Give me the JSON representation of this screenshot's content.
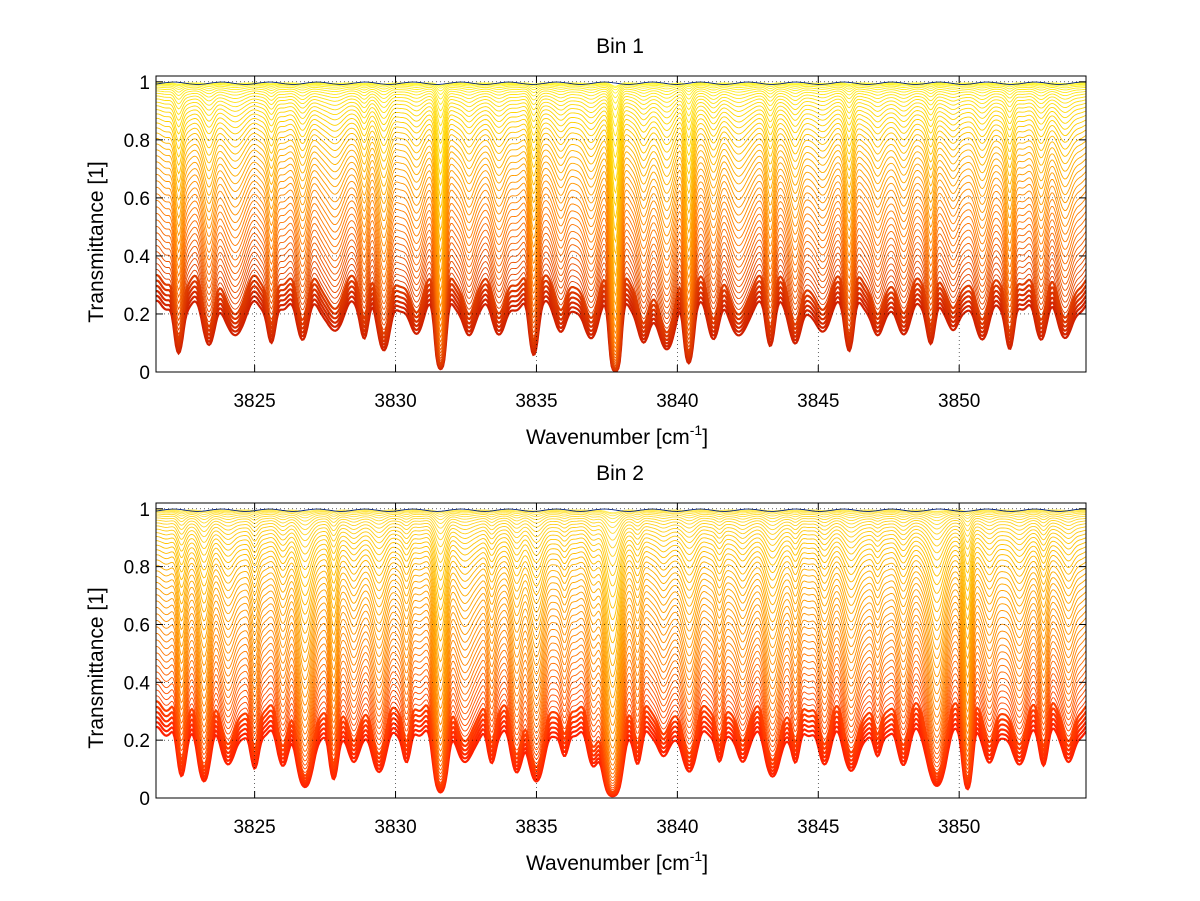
{
  "chart_data": [
    {
      "type": "line",
      "title": "Bin 1",
      "xlabel": "Wavenumber [cm",
      "xlabel_sup": "-1",
      "xlabel_close": "]",
      "ylabel": "Transmittance [1]",
      "xlim": [
        3821.5,
        3854.5
      ],
      "ylim": [
        0,
        1.02
      ],
      "x_ticks": [
        3825,
        3830,
        3835,
        3840,
        3845,
        3850
      ],
      "x_tick_labels": [
        "3825",
        "3830",
        "3835",
        "3840",
        "3845",
        "3850"
      ],
      "y_ticks": [
        0,
        0.2,
        0.4,
        0.6,
        0.8,
        1
      ],
      "y_tick_labels": [
        "0",
        "0.2",
        "0.4",
        "0.6",
        "0.8",
        "1"
      ],
      "grid": "dotted",
      "n_curves": 48,
      "line_centers": [
        3822.3,
        3823.4,
        3824.3,
        3825.6,
        3826.7,
        3827.8,
        3828.9,
        3829.6,
        3830.7,
        3831.6,
        3832.6,
        3833.7,
        3834.9,
        3835.9,
        3836.9,
        3837.8,
        3838.8,
        3839.6,
        3840.4,
        3841.3,
        3842.2,
        3843.3,
        3844.2,
        3845.1,
        3846.1,
        3847.1,
        3848.0,
        3849.0,
        3849.8,
        3850.8,
        3851.8,
        3852.9,
        3853.8
      ],
      "line_depths": [
        0.3,
        0.2,
        0.15,
        0.2,
        0.15,
        0.12,
        0.15,
        0.25,
        0.12,
        0.7,
        0.15,
        0.12,
        0.3,
        0.12,
        0.15,
        0.97,
        0.2,
        0.25,
        0.45,
        0.15,
        0.15,
        0.2,
        0.2,
        0.12,
        0.25,
        0.15,
        0.12,
        0.2,
        0.12,
        0.15,
        0.25,
        0.15,
        0.15
      ],
      "color_scheme": [
        "#d02000",
        "#ff7800",
        "#ffd000",
        "#ffff40"
      ],
      "top_curve_color": "#00207f"
    },
    {
      "type": "line",
      "title": "Bin 2",
      "xlabel": "Wavenumber [cm",
      "xlabel_sup": "-1",
      "xlabel_close": "]",
      "ylabel": "Transmittance [1]",
      "xlim": [
        3821.5,
        3854.5
      ],
      "ylim": [
        0,
        1.02
      ],
      "x_ticks": [
        3825,
        3830,
        3835,
        3840,
        3845,
        3850
      ],
      "x_tick_labels": [
        "3825",
        "3830",
        "3835",
        "3840",
        "3845",
        "3850"
      ],
      "y_ticks": [
        0,
        0.2,
        0.4,
        0.6,
        0.8,
        1
      ],
      "y_tick_labels": [
        "0",
        "0.2",
        "0.4",
        "0.6",
        "0.8",
        "1"
      ],
      "grid": "dotted",
      "n_curves": 48,
      "line_centers": [
        3822.4,
        3823.2,
        3824.1,
        3825.0,
        3826.0,
        3826.8,
        3827.8,
        3828.5,
        3829.4,
        3830.4,
        3831.6,
        3832.5,
        3833.4,
        3834.3,
        3835.0,
        3836.0,
        3837.0,
        3837.7,
        3838.6,
        3839.5,
        3840.4,
        3841.5,
        3842.3,
        3843.4,
        3844.2,
        3845.2,
        3846.2,
        3847.1,
        3848.0,
        3849.2,
        3850.3,
        3851.1,
        3852.1,
        3853.0,
        3853.9
      ],
      "line_depths": [
        0.25,
        0.3,
        0.15,
        0.2,
        0.15,
        0.4,
        0.3,
        0.15,
        0.2,
        0.15,
        0.55,
        0.15,
        0.15,
        0.2,
        0.3,
        0.12,
        0.15,
        0.8,
        0.15,
        0.12,
        0.2,
        0.15,
        0.15,
        0.25,
        0.15,
        0.15,
        0.2,
        0.12,
        0.15,
        0.4,
        0.45,
        0.15,
        0.15,
        0.15,
        0.15
      ],
      "color_scheme": [
        "#ff2000",
        "#ff8000",
        "#ffc000",
        "#fff060"
      ],
      "top_curve_color": "#00207f"
    }
  ]
}
